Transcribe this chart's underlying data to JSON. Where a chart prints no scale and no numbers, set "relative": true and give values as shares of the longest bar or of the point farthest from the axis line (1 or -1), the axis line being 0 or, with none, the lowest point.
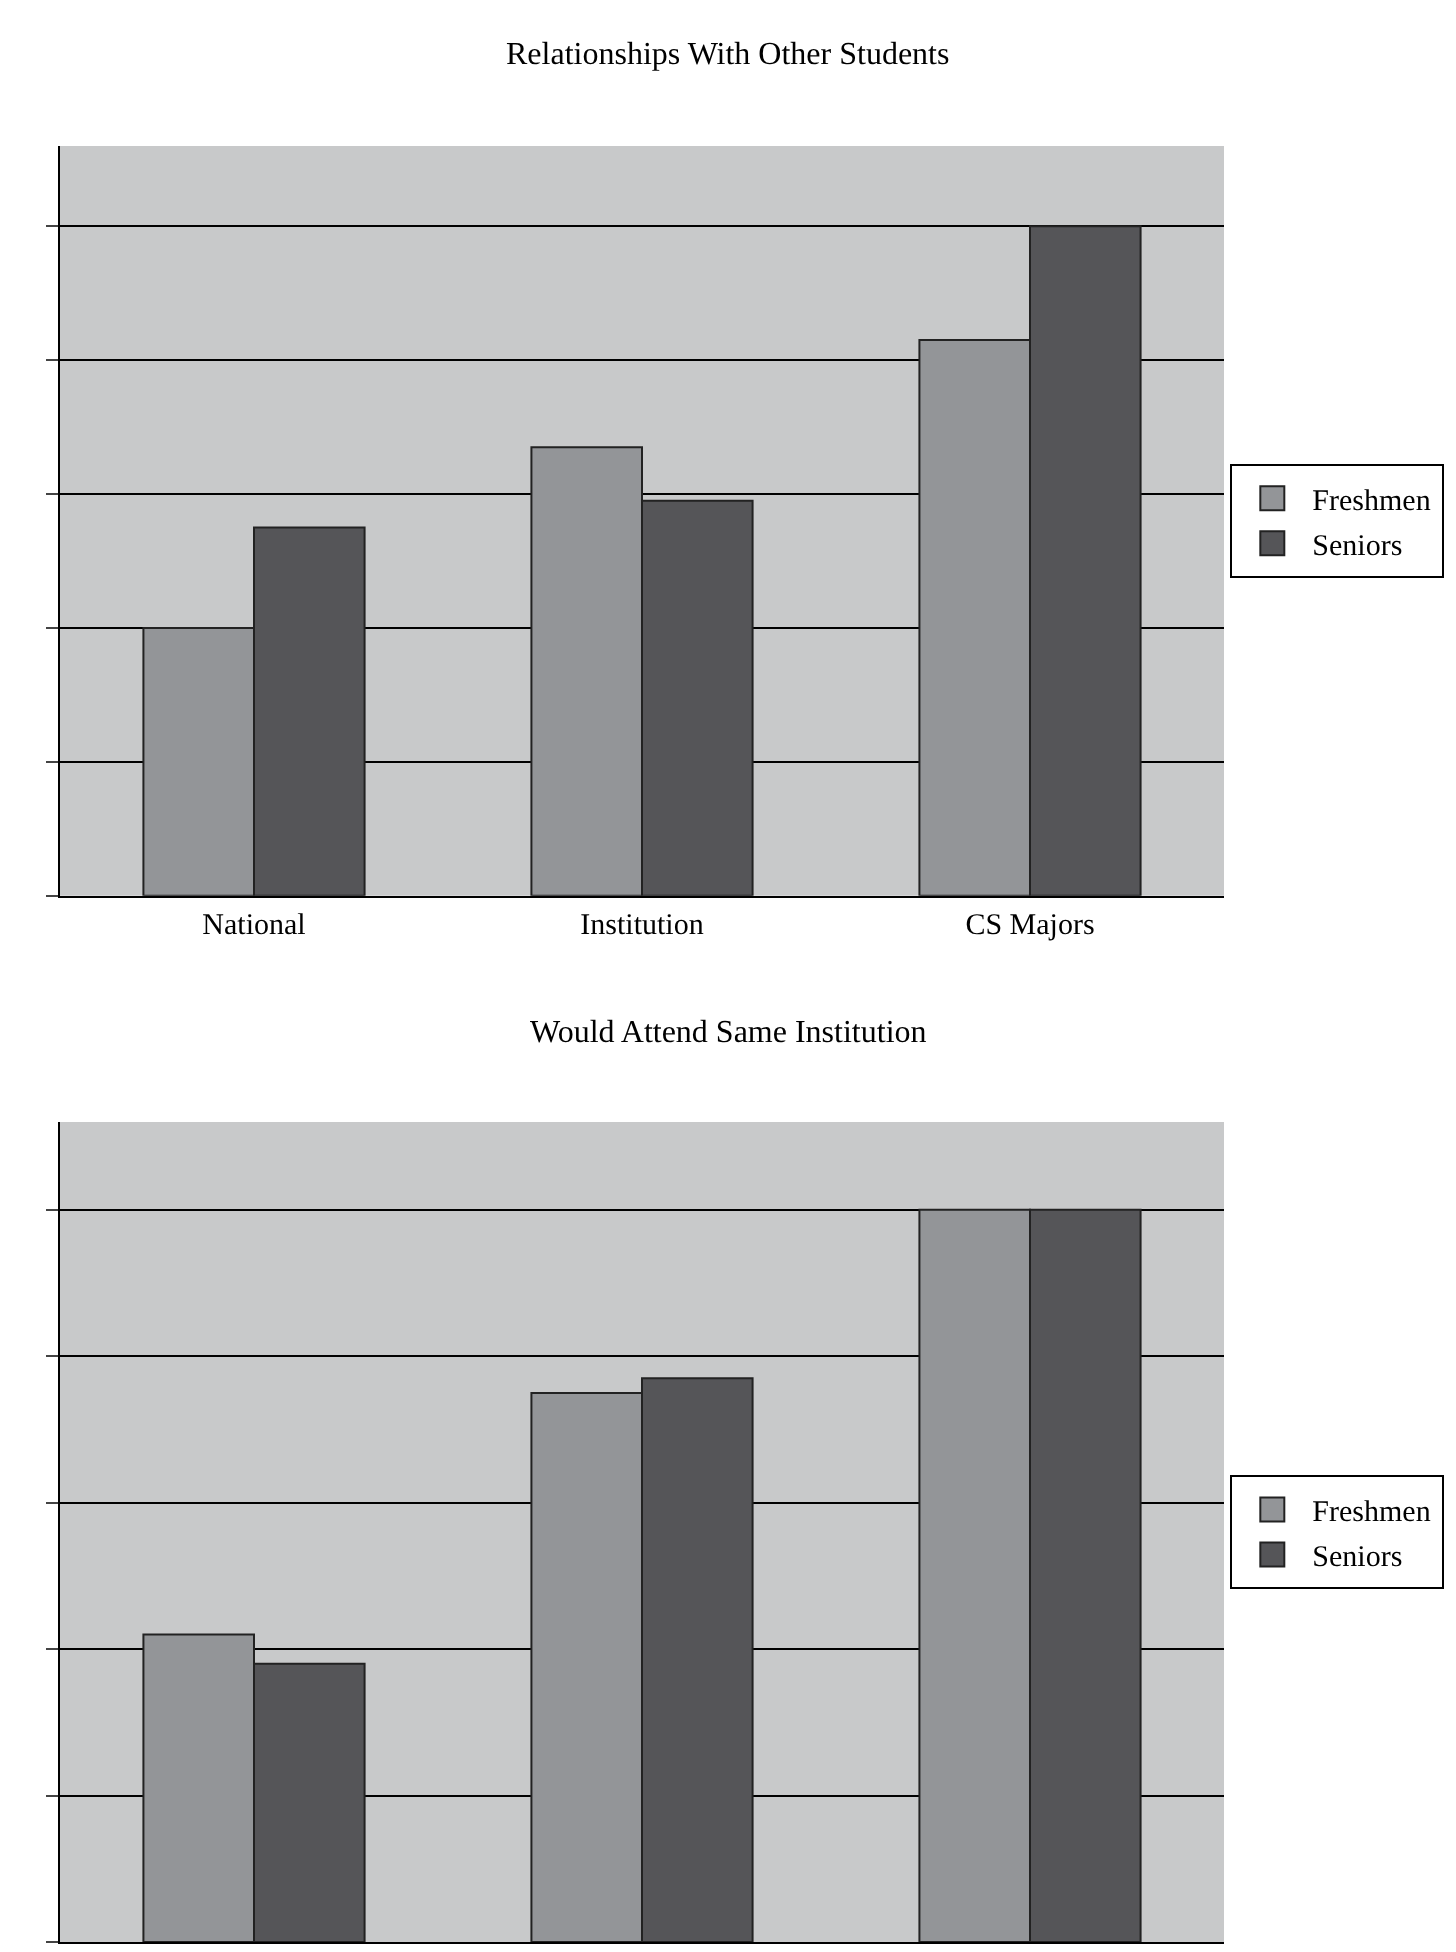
{
  "chart_data": [
    {
      "type": "bar",
      "title": "Relationships With Other Students",
      "categories": [
        "National",
        "Institution",
        "CS Majors"
      ],
      "relative": true,
      "grid": "y",
      "legend": "right",
      "series": [
        {
          "name": "Freshmen",
          "color": "#939598",
          "values": [
            0.4,
            0.67,
            0.83
          ]
        },
        {
          "name": "Seniors",
          "color": "#555558",
          "values": [
            0.55,
            0.59,
            1.0
          ]
        }
      ]
    },
    {
      "type": "bar",
      "title": "Would Attend Same Institution",
      "categories": [
        null,
        null,
        null
      ],
      "relative": true,
      "grid": "y",
      "legend": "right",
      "series": [
        {
          "name": "Freshmen",
          "color": "#939598",
          "values": [
            0.42,
            0.75,
            1.0
          ]
        },
        {
          "name": "Seniors",
          "color": "#555558",
          "values": [
            0.38,
            0.77,
            1.0
          ]
        }
      ]
    }
  ]
}
